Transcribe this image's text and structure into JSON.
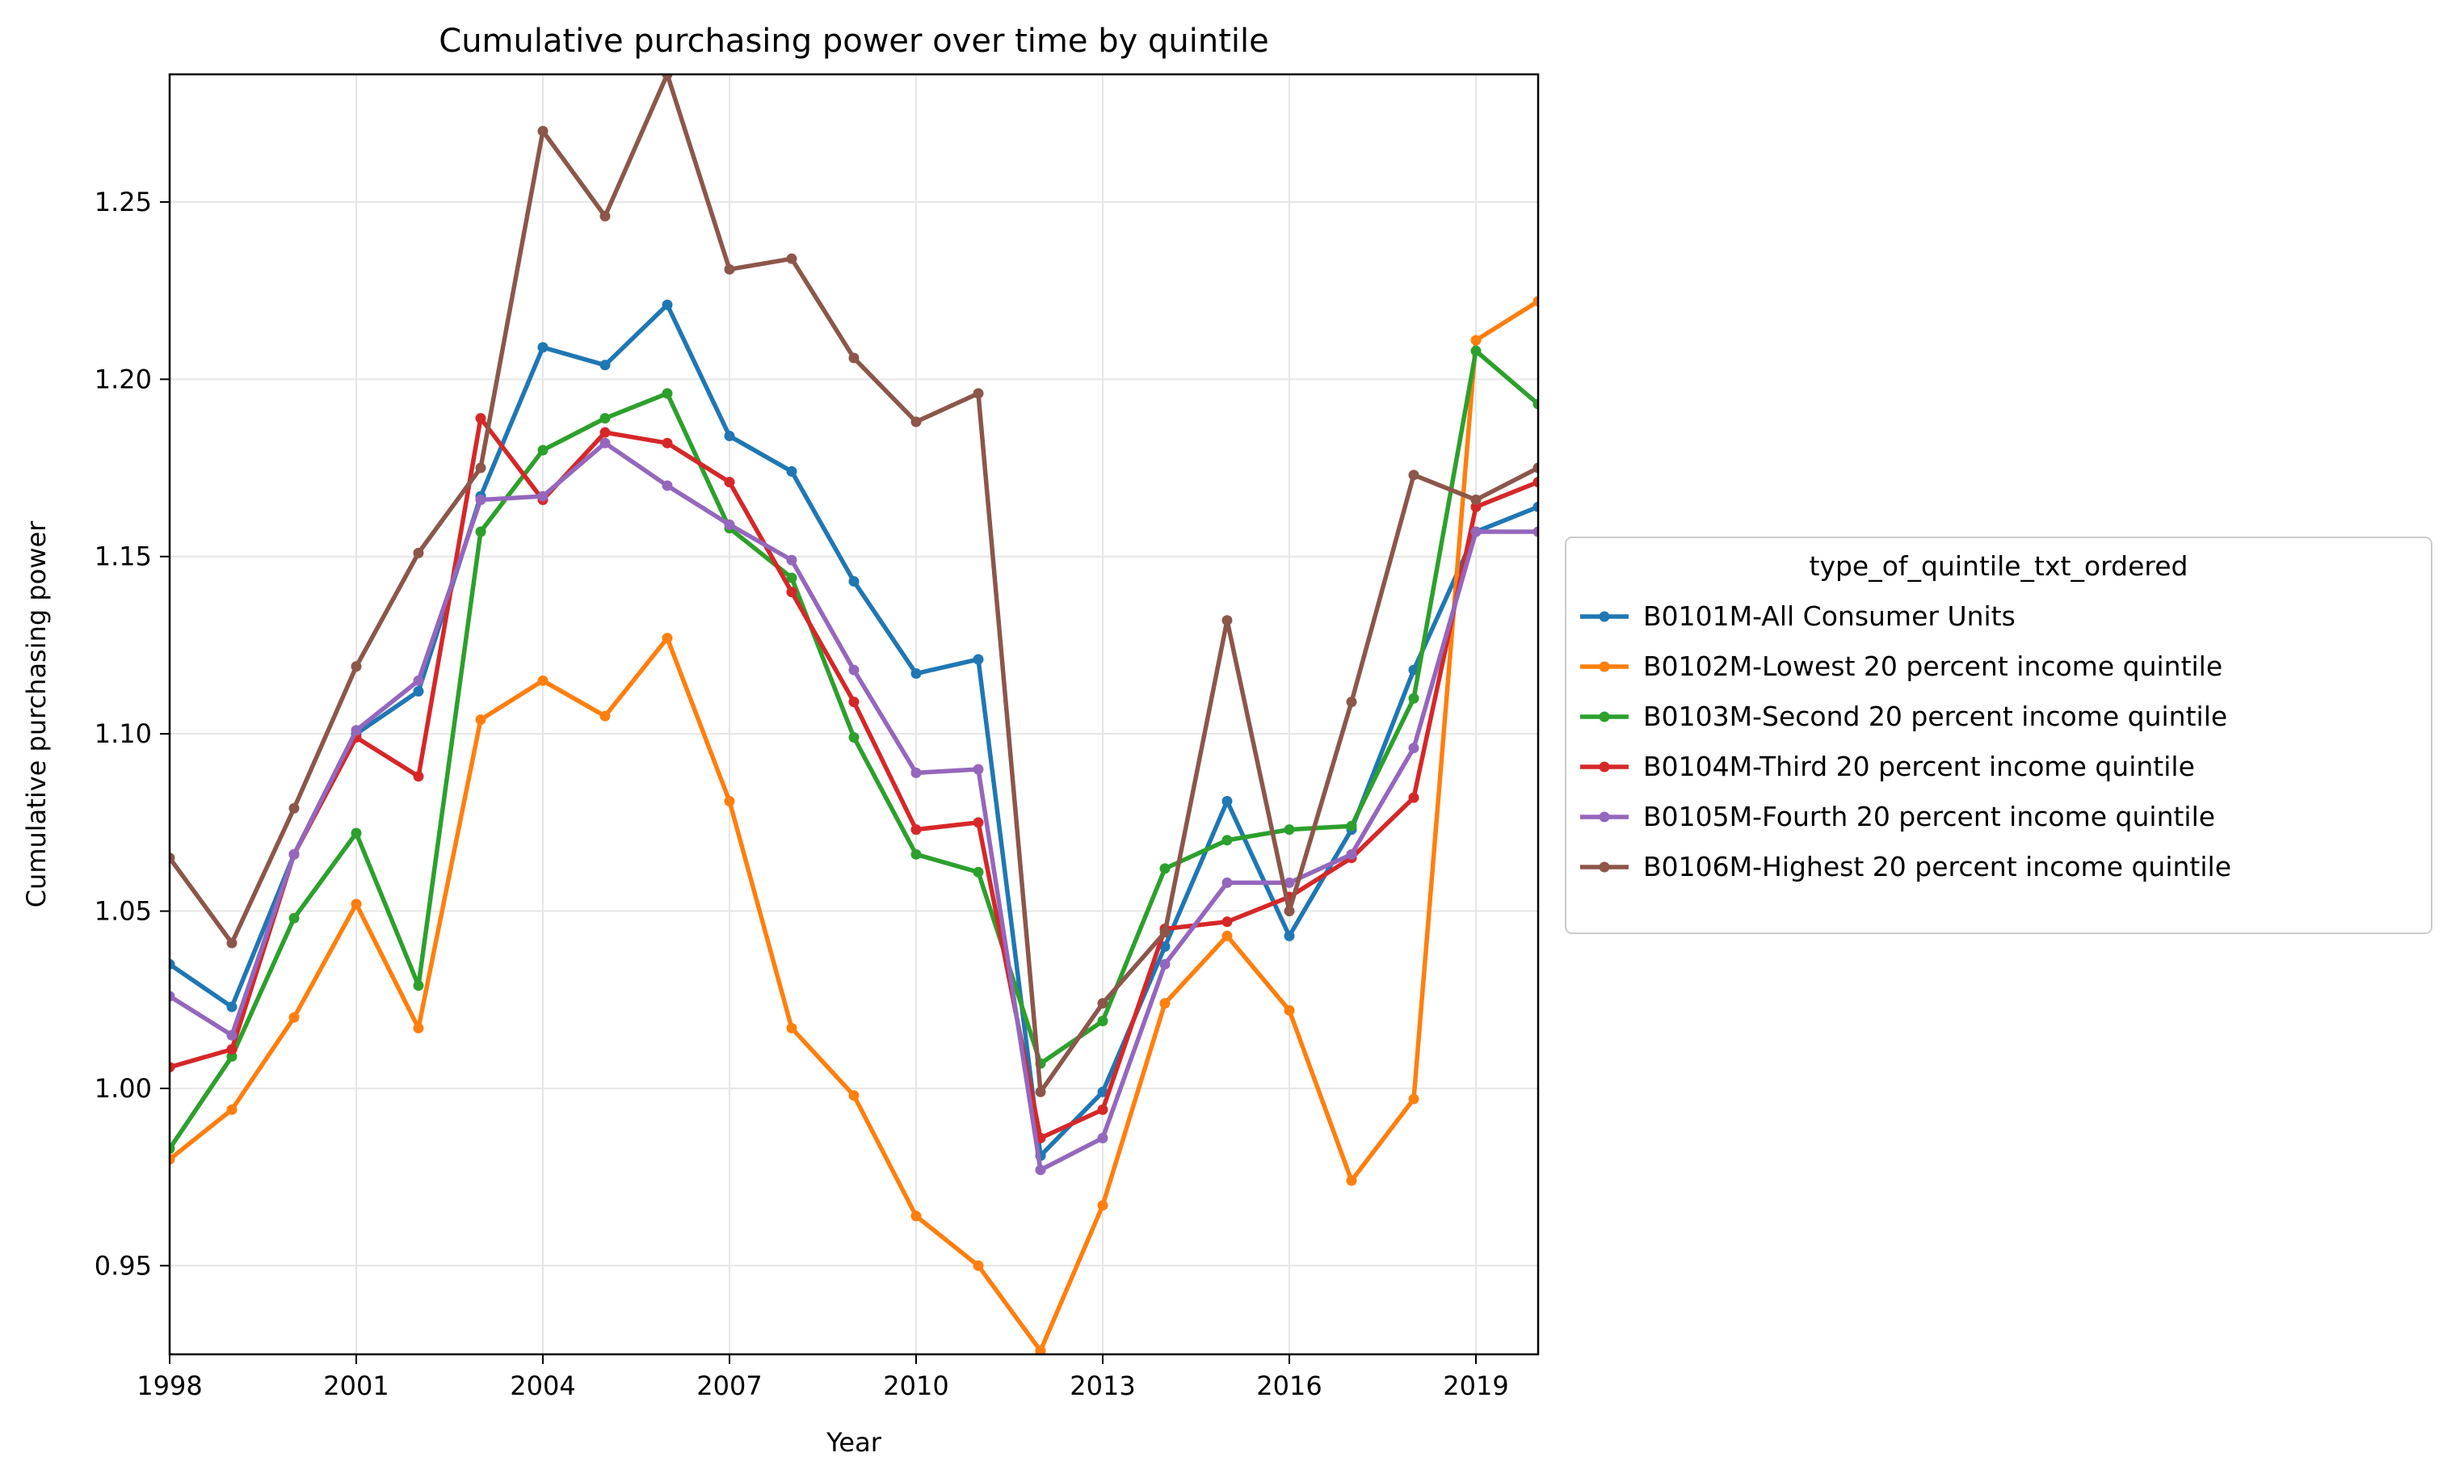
{
  "chart_data": {
    "type": "line",
    "title": "Cumulative purchasing power over time by quintile",
    "xlabel": "Year",
    "ylabel": "Cumulative purchasing power",
    "xlim": [
      1998,
      2020
    ],
    "ylim": [
      0.925,
      1.286
    ],
    "xticks": [
      1998,
      2001,
      2004,
      2007,
      2010,
      2013,
      2016,
      2019
    ],
    "yticks": [
      0.95,
      1.0,
      1.05,
      1.1,
      1.15,
      1.2,
      1.25
    ],
    "ytick_labels": [
      "0.95",
      "1.00",
      "1.05",
      "1.10",
      "1.15",
      "1.20",
      "1.25"
    ],
    "grid": true,
    "legend": {
      "title": "type_of_quintile_txt_ordered",
      "placement": "outside-right"
    },
    "x": [
      1998,
      1999,
      2000,
      2001,
      2002,
      2003,
      2004,
      2005,
      2006,
      2007,
      2008,
      2009,
      2010,
      2011,
      2012,
      2013,
      2014,
      2015,
      2016,
      2017,
      2018,
      2019,
      2020
    ],
    "series": [
      {
        "name": "B0101M-All Consumer Units",
        "color": "#1f77b4",
        "values": [
          1.035,
          1.023,
          1.066,
          1.1,
          1.112,
          1.167,
          1.209,
          1.204,
          1.221,
          1.184,
          1.174,
          1.143,
          1.117,
          1.121,
          0.981,
          0.999,
          1.04,
          1.081,
          1.043,
          1.073,
          1.118,
          1.157,
          1.164
        ]
      },
      {
        "name": "B0102M-Lowest 20 percent income quintile",
        "color": "#ff7f0e",
        "values": [
          0.98,
          0.994,
          1.02,
          1.052,
          1.017,
          1.104,
          1.115,
          1.105,
          1.127,
          1.081,
          1.017,
          0.998,
          0.964,
          0.95,
          0.926,
          0.967,
          1.024,
          1.043,
          1.022,
          0.974,
          0.997,
          1.211,
          1.222
        ]
      },
      {
        "name": "B0103M-Second 20 percent income quintile",
        "color": "#2ca02c",
        "values": [
          0.983,
          1.009,
          1.048,
          1.072,
          1.029,
          1.157,
          1.18,
          1.189,
          1.196,
          1.158,
          1.144,
          1.099,
          1.066,
          1.061,
          1.007,
          1.019,
          1.062,
          1.07,
          1.073,
          1.074,
          1.11,
          1.208,
          1.193
        ]
      },
      {
        "name": "B0104M-Third 20 percent income quintile",
        "color": "#d62728",
        "values": [
          1.006,
          1.011,
          1.066,
          1.099,
          1.088,
          1.189,
          1.166,
          1.185,
          1.182,
          1.171,
          1.14,
          1.109,
          1.073,
          1.075,
          0.986,
          0.994,
          1.045,
          1.047,
          1.054,
          1.065,
          1.082,
          1.164,
          1.171
        ]
      },
      {
        "name": "B0105M-Fourth 20 percent income quintile",
        "color": "#9467bd",
        "values": [
          1.026,
          1.015,
          1.066,
          1.101,
          1.115,
          1.166,
          1.167,
          1.182,
          1.17,
          1.159,
          1.149,
          1.118,
          1.089,
          1.09,
          0.977,
          0.986,
          1.035,
          1.058,
          1.058,
          1.066,
          1.096,
          1.157,
          1.157
        ]
      },
      {
        "name": "B0106M-Highest 20 percent income quintile",
        "color": "#8c564b",
        "values": [
          1.065,
          1.041,
          1.079,
          1.119,
          1.151,
          1.175,
          1.27,
          1.246,
          1.286,
          1.231,
          1.234,
          1.206,
          1.188,
          1.196,
          0.999,
          1.024,
          1.044,
          1.132,
          1.05,
          1.109,
          1.173,
          1.166,
          1.175
        ]
      }
    ]
  }
}
